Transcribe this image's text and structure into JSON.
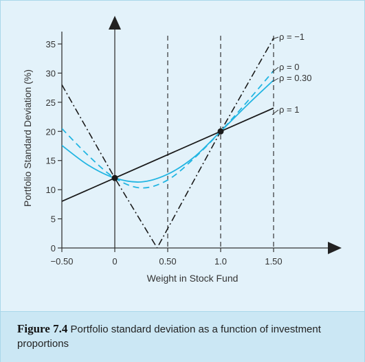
{
  "caption": {
    "label": "Figure 7.4",
    "text": "Portfolio standard deviation as a function of investment proportions"
  },
  "colors": {
    "rho_neg1": "#1a1a1a",
    "rho_0": "#22b5e2",
    "rho_030": "#22b5e2",
    "rho_1": "#1a1a1a",
    "gridline": "#333333"
  },
  "chart_data": {
    "type": "line",
    "title": "",
    "xlabel": "Weight in Stock Fund",
    "ylabel": "Portfolio Standard Deviation (%)",
    "xlim": [
      -0.5,
      1.5
    ],
    "ylim": [
      0,
      35
    ],
    "x_ticks": [
      -0.5,
      0,
      0.5,
      1.0,
      1.5
    ],
    "x_tick_labels": [
      "−0.50",
      "0",
      "0.50",
      "1.0",
      "1.50"
    ],
    "y_ticks": [
      0,
      5,
      10,
      15,
      20,
      25,
      30,
      35
    ],
    "y_tick_labels": [
      "0",
      "5",
      "10",
      "15",
      "20",
      "25",
      "30",
      "35"
    ],
    "dashed_verticals_at": [
      0.5,
      1.0,
      1.5
    ],
    "points": [
      {
        "x": 0,
        "y": 12
      },
      {
        "x": 1.0,
        "y": 20
      }
    ],
    "series": [
      {
        "name": "ρ = −1",
        "style": "dash-dot",
        "color": "#1a1a1a",
        "x": [
          -0.5,
          0,
          0.4,
          1.0,
          1.5
        ],
        "y": [
          28,
          12,
          0,
          20,
          36
        ]
      },
      {
        "name": "ρ = 0",
        "style": "dashed",
        "color": "#22b5e2",
        "x": [
          -0.5,
          -0.25,
          0,
          0.25,
          0.5,
          0.75,
          1.0,
          1.25,
          1.5
        ],
        "y": [
          20.49,
          15.85,
          12,
          10.3,
          11.66,
          15.4,
          20,
          25.08,
          30.41
        ]
      },
      {
        "name": "ρ = 0.30",
        "style": "solid",
        "color": "#22b5e2",
        "x": [
          -0.5,
          -0.25,
          0,
          0.25,
          0.5,
          0.75,
          1.0,
          1.25,
          1.5
        ],
        "y": [
          17.59,
          14.2,
          12,
          11.33,
          12.66,
          15.6,
          20,
          24.5,
          28.8
        ]
      },
      {
        "name": "ρ = 1",
        "style": "solid",
        "color": "#1a1a1a",
        "x": [
          -0.5,
          1.5
        ],
        "y": [
          8,
          24
        ]
      }
    ]
  }
}
